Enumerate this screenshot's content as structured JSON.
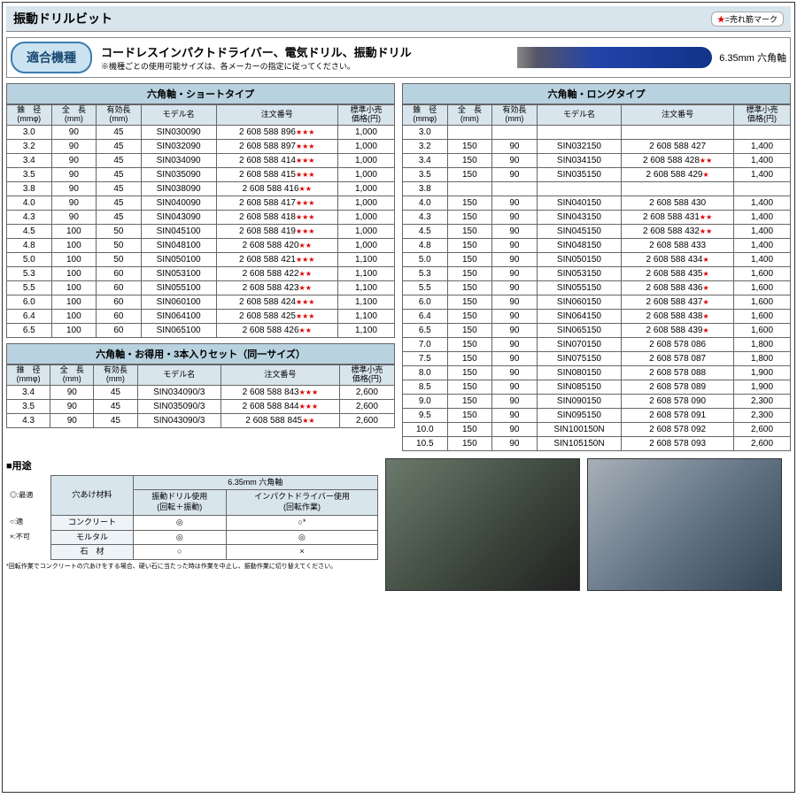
{
  "title": "振動ドリルビット",
  "legend": {
    "star": "★",
    "text": "=売れ筋マーク"
  },
  "compat": {
    "button": "適合機種",
    "headline": "コードレスインパクトドライバー、電気ドリル、振動ドリル",
    "note": "※機種ごとの使用可能サイズは、各メーカーの指定に従ってください。",
    "drill_label": "6.35mm 六角軸"
  },
  "col_headers": {
    "dia": "錐　径\n(mmφ)",
    "len": "全　長\n(mm)",
    "eff": "有効長\n(mm)",
    "model": "モデル名",
    "order": "注文番号",
    "price": "標準小売\n価格(円)"
  },
  "table_short": {
    "title": "六角軸・ショートタイプ",
    "rows": [
      {
        "d": "3.0",
        "l": "90",
        "e": "45",
        "m": "SIN030090",
        "o": "2 608 588 896",
        "s": "***",
        "p": "1,000"
      },
      {
        "d": "3.2",
        "l": "90",
        "e": "45",
        "m": "SIN032090",
        "o": "2 608 588 897",
        "s": "***",
        "p": "1,000"
      },
      {
        "d": "3.4",
        "l": "90",
        "e": "45",
        "m": "SIN034090",
        "o": "2 608 588 414",
        "s": "***",
        "p": "1,000"
      },
      {
        "d": "3.5",
        "l": "90",
        "e": "45",
        "m": "SIN035090",
        "o": "2 608 588 415",
        "s": "***",
        "p": "1,000"
      },
      {
        "d": "3.8",
        "l": "90",
        "e": "45",
        "m": "SIN038090",
        "o": "2 608 588 416",
        "s": "**",
        "p": "1,000"
      },
      {
        "d": "4.0",
        "l": "90",
        "e": "45",
        "m": "SIN040090",
        "o": "2 608 588 417",
        "s": "***",
        "p": "1,000"
      },
      {
        "d": "4.3",
        "l": "90",
        "e": "45",
        "m": "SIN043090",
        "o": "2 608 588 418",
        "s": "***",
        "p": "1,000"
      },
      {
        "d": "4.5",
        "l": "100",
        "e": "50",
        "m": "SIN045100",
        "o": "2 608 588 419",
        "s": "***",
        "p": "1,000"
      },
      {
        "d": "4.8",
        "l": "100",
        "e": "50",
        "m": "SIN048100",
        "o": "2 608 588 420",
        "s": "**",
        "p": "1,000"
      },
      {
        "d": "5.0",
        "l": "100",
        "e": "50",
        "m": "SIN050100",
        "o": "2 608 588 421",
        "s": "***",
        "p": "1,100"
      },
      {
        "d": "5.3",
        "l": "100",
        "e": "60",
        "m": "SIN053100",
        "o": "2 608 588 422",
        "s": "**",
        "p": "1,100"
      },
      {
        "d": "5.5",
        "l": "100",
        "e": "60",
        "m": "SIN055100",
        "o": "2 608 588 423",
        "s": "**",
        "p": "1,100"
      },
      {
        "d": "6.0",
        "l": "100",
        "e": "60",
        "m": "SIN060100",
        "o": "2 608 588 424",
        "s": "***",
        "p": "1,100"
      },
      {
        "d": "6.4",
        "l": "100",
        "e": "60",
        "m": "SIN064100",
        "o": "2 608 588 425",
        "s": "***",
        "p": "1,100"
      },
      {
        "d": "6.5",
        "l": "100",
        "e": "60",
        "m": "SIN065100",
        "o": "2 608 588 426",
        "s": "**",
        "p": "1,100"
      }
    ]
  },
  "table_set": {
    "title": "六角軸・お得用・3本入りセット（同一サイズ）",
    "rows": [
      {
        "d": "3.4",
        "l": "90",
        "e": "45",
        "m": "SIN034090/3",
        "o": "2 608 588 843",
        "s": "***",
        "p": "2,600"
      },
      {
        "d": "3.5",
        "l": "90",
        "e": "45",
        "m": "SIN035090/3",
        "o": "2 608 588 844",
        "s": "***",
        "p": "2,600"
      },
      {
        "d": "4.3",
        "l": "90",
        "e": "45",
        "m": "SIN043090/3",
        "o": "2 608 588 845",
        "s": "**",
        "p": "2,600"
      }
    ]
  },
  "table_long": {
    "title": "六角軸・ロングタイプ",
    "rows": [
      {
        "d": "3.0",
        "l": "",
        "e": "",
        "m": "",
        "o": "",
        "s": "",
        "p": ""
      },
      {
        "d": "3.2",
        "l": "150",
        "e": "90",
        "m": "SIN032150",
        "o": "2 608 588 427",
        "s": "",
        "p": "1,400"
      },
      {
        "d": "3.4",
        "l": "150",
        "e": "90",
        "m": "SIN034150",
        "o": "2 608 588 428",
        "s": "**",
        "p": "1,400"
      },
      {
        "d": "3.5",
        "l": "150",
        "e": "90",
        "m": "SIN035150",
        "o": "2 608 588 429",
        "s": "*",
        "p": "1,400"
      },
      {
        "d": "3.8",
        "l": "",
        "e": "",
        "m": "",
        "o": "",
        "s": "",
        "p": ""
      },
      {
        "d": "4.0",
        "l": "150",
        "e": "90",
        "m": "SIN040150",
        "o": "2 608 588 430",
        "s": "",
        "p": "1,400"
      },
      {
        "d": "4.3",
        "l": "150",
        "e": "90",
        "m": "SIN043150",
        "o": "2 608 588 431",
        "s": "**",
        "p": "1,400"
      },
      {
        "d": "4.5",
        "l": "150",
        "e": "90",
        "m": "SIN045150",
        "o": "2 608 588 432",
        "s": "**",
        "p": "1,400"
      },
      {
        "d": "4.8",
        "l": "150",
        "e": "90",
        "m": "SIN048150",
        "o": "2 608 588 433",
        "s": "",
        "p": "1,400"
      },
      {
        "d": "5.0",
        "l": "150",
        "e": "90",
        "m": "SIN050150",
        "o": "2 608 588 434",
        "s": "*",
        "p": "1,400"
      },
      {
        "d": "5.3",
        "l": "150",
        "e": "90",
        "m": "SIN053150",
        "o": "2 608 588 435",
        "s": "*",
        "p": "1,600"
      },
      {
        "d": "5.5",
        "l": "150",
        "e": "90",
        "m": "SIN055150",
        "o": "2 608 588 436",
        "s": "*",
        "p": "1,600"
      },
      {
        "d": "6.0",
        "l": "150",
        "e": "90",
        "m": "SIN060150",
        "o": "2 608 588 437",
        "s": "*",
        "p": "1,600"
      },
      {
        "d": "6.4",
        "l": "150",
        "e": "90",
        "m": "SIN064150",
        "o": "2 608 588 438",
        "s": "*",
        "p": "1,600"
      },
      {
        "d": "6.5",
        "l": "150",
        "e": "90",
        "m": "SIN065150",
        "o": "2 608 588 439",
        "s": "*",
        "p": "1,600"
      },
      {
        "d": "7.0",
        "l": "150",
        "e": "90",
        "m": "SIN070150",
        "o": "2 608 578 086",
        "s": "",
        "p": "1,800"
      },
      {
        "d": "7.5",
        "l": "150",
        "e": "90",
        "m": "SIN075150",
        "o": "2 608 578 087",
        "s": "",
        "p": "1,800"
      },
      {
        "d": "8.0",
        "l": "150",
        "e": "90",
        "m": "SIN080150",
        "o": "2 608 578 088",
        "s": "",
        "p": "1,900"
      },
      {
        "d": "8.5",
        "l": "150",
        "e": "90",
        "m": "SIN085150",
        "o": "2 608 578 089",
        "s": "",
        "p": "1,900"
      },
      {
        "d": "9.0",
        "l": "150",
        "e": "90",
        "m": "SIN090150",
        "o": "2 608 578 090",
        "s": "",
        "p": "2,300"
      },
      {
        "d": "9.5",
        "l": "150",
        "e": "90",
        "m": "SIN095150",
        "o": "2 608 578 091",
        "s": "",
        "p": "2,300"
      },
      {
        "d": "10.0",
        "l": "150",
        "e": "90",
        "m": "SIN100150N",
        "o": "2 608 578 092",
        "s": "",
        "p": "2,600"
      },
      {
        "d": "10.5",
        "l": "150",
        "e": "90",
        "m": "SIN105150N",
        "o": "2 608 578 093",
        "s": "",
        "p": "2,600"
      }
    ]
  },
  "usage": {
    "heading": "■用途",
    "col_mat": "穴あけ材料",
    "col_span": "6.35mm 六角軸",
    "col_vib": "振動ドリル使用\n(回転＋振動)",
    "col_imp": "インパクトドライバー使用\n(回転作業)",
    "legend_best": "◎:最適",
    "legend_ok": "○:適",
    "legend_no": "×:不可",
    "rows": [
      {
        "mat": "コンクリート",
        "v": "◎",
        "i": "○*"
      },
      {
        "mat": "モルタル",
        "v": "◎",
        "i": "◎"
      },
      {
        "mat": "石　材",
        "v": "○",
        "i": "×"
      }
    ],
    "note": "*回転作業でコンクリートの穴あけをする場合、硬い石に当たった時は作業を中止し、振動作業に切り替えてください。"
  },
  "colors": {
    "header_bg": "#d9e5ed",
    "title_bg": "#b9d2e0",
    "border": "#666666",
    "star_red": "#dd0000",
    "compat_btn_bg": "#cbe3f0",
    "compat_btn_border": "#3b7bb0"
  }
}
